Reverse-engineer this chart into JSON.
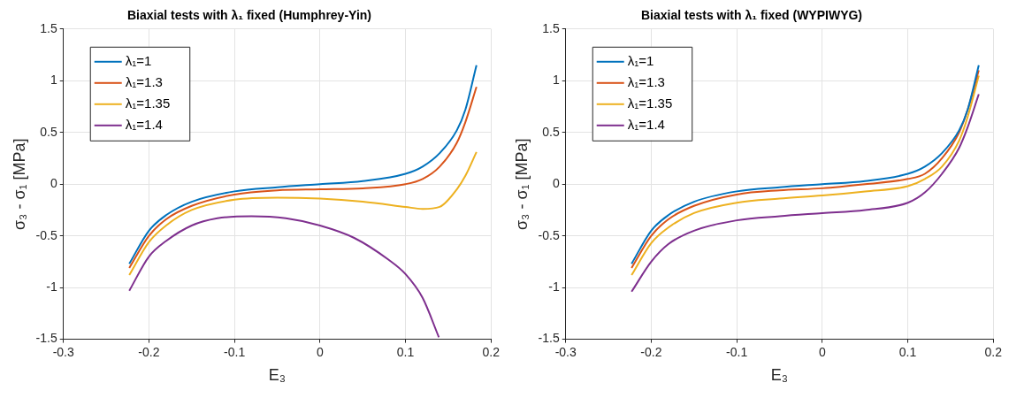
{
  "chart_data": [
    {
      "type": "line",
      "title": "Biaxial tests with λ₁ fixed (Humphrey-Yin)",
      "xlabel": "E₃",
      "ylabel": "σ₃ - σ₁ [MPa]",
      "xlim": [
        -0.3,
        0.2
      ],
      "ylim": [
        -1.5,
        1.5
      ],
      "xticks": [
        -0.3,
        -0.2,
        -0.1,
        0,
        0.1,
        0.2
      ],
      "yticks": [
        -1.5,
        -1,
        -0.5,
        0,
        0.5,
        1,
        1.5
      ],
      "grid": true,
      "legend": "top left",
      "marker": "none",
      "line_style": "solid",
      "series": [
        {
          "name": "λ₁=1",
          "color": "#0072bd",
          "x": [
            -0.223,
            -0.2,
            -0.18,
            -0.15,
            -0.1,
            -0.05,
            0,
            0.05,
            0.1,
            0.12,
            0.14,
            0.16,
            0.17,
            0.183
          ],
          "values": [
            -0.77,
            -0.45,
            -0.3,
            -0.17,
            -0.07,
            -0.03,
            0,
            0.03,
            0.1,
            0.17,
            0.3,
            0.52,
            0.72,
            1.15
          ]
        },
        {
          "name": "λ₁=1.3",
          "color": "#d95319",
          "x": [
            -0.223,
            -0.2,
            -0.18,
            -0.15,
            -0.1,
            -0.05,
            0,
            0.05,
            0.1,
            0.12,
            0.14,
            0.16,
            0.17,
            0.183
          ],
          "values": [
            -0.81,
            -0.5,
            -0.34,
            -0.21,
            -0.1,
            -0.06,
            -0.05,
            -0.04,
            0,
            0.05,
            0.17,
            0.4,
            0.6,
            0.94
          ]
        },
        {
          "name": "λ₁=1.35",
          "color": "#edb120",
          "x": [
            -0.223,
            -0.2,
            -0.18,
            -0.15,
            -0.1,
            -0.05,
            0,
            0.05,
            0.1,
            0.12,
            0.14,
            0.16,
            0.17,
            0.183
          ],
          "values": [
            -0.88,
            -0.56,
            -0.4,
            -0.25,
            -0.15,
            -0.13,
            -0.14,
            -0.17,
            -0.22,
            -0.24,
            -0.22,
            -0.05,
            0.08,
            0.31
          ]
        },
        {
          "name": "λ₁=1.4",
          "color": "#7e2f8e",
          "x": [
            -0.223,
            -0.2,
            -0.18,
            -0.15,
            -0.12,
            -0.08,
            -0.04,
            0,
            0.04,
            0.08,
            0.1,
            0.12,
            0.139
          ],
          "values": [
            -1.03,
            -0.7,
            -0.55,
            -0.4,
            -0.33,
            -0.31,
            -0.33,
            -0.4,
            -0.52,
            -0.73,
            -0.87,
            -1.1,
            -1.48
          ]
        }
      ]
    },
    {
      "type": "line",
      "title": "Biaxial tests with λ₁ fixed (WYPIWYG)",
      "xlabel": "E₃",
      "ylabel": "σ₃ - σ₁ [MPa]",
      "xlim": [
        -0.3,
        0.2
      ],
      "ylim": [
        -1.5,
        1.5
      ],
      "xticks": [
        -0.3,
        -0.2,
        -0.1,
        0,
        0.1,
        0.2
      ],
      "yticks": [
        -1.5,
        -1,
        -0.5,
        0,
        0.5,
        1,
        1.5
      ],
      "grid": true,
      "legend": "top left",
      "marker": "none",
      "line_style": "solid",
      "series": [
        {
          "name": "λ₁=1",
          "color": "#0072bd",
          "x": [
            -0.223,
            -0.2,
            -0.18,
            -0.15,
            -0.1,
            -0.05,
            0,
            0.05,
            0.1,
            0.12,
            0.14,
            0.16,
            0.17,
            0.183
          ],
          "values": [
            -0.77,
            -0.45,
            -0.3,
            -0.17,
            -0.07,
            -0.03,
            0,
            0.03,
            0.1,
            0.17,
            0.3,
            0.52,
            0.72,
            1.15
          ]
        },
        {
          "name": "λ₁=1.3",
          "color": "#d95319",
          "x": [
            -0.223,
            -0.2,
            -0.18,
            -0.15,
            -0.1,
            -0.05,
            0,
            0.05,
            0.1,
            0.12,
            0.14,
            0.16,
            0.17,
            0.183
          ],
          "values": [
            -0.81,
            -0.5,
            -0.34,
            -0.21,
            -0.1,
            -0.06,
            -0.04,
            0,
            0.05,
            0.1,
            0.25,
            0.5,
            0.72,
            1.1
          ]
        },
        {
          "name": "λ₁=1.35",
          "color": "#edb120",
          "x": [
            -0.223,
            -0.2,
            -0.18,
            -0.15,
            -0.1,
            -0.05,
            0,
            0.05,
            0.1,
            0.12,
            0.14,
            0.16,
            0.17,
            0.183
          ],
          "values": [
            -0.88,
            -0.57,
            -0.42,
            -0.28,
            -0.18,
            -0.14,
            -0.11,
            -0.07,
            -0.02,
            0.05,
            0.17,
            0.42,
            0.65,
            1.05
          ]
        },
        {
          "name": "λ₁=1.4",
          "color": "#7e2f8e",
          "x": [
            -0.223,
            -0.2,
            -0.18,
            -0.15,
            -0.1,
            -0.05,
            0,
            0.05,
            0.1,
            0.12,
            0.14,
            0.16,
            0.17,
            0.183
          ],
          "values": [
            -1.04,
            -0.75,
            -0.58,
            -0.45,
            -0.35,
            -0.31,
            -0.28,
            -0.25,
            -0.18,
            -0.08,
            0.1,
            0.35,
            0.55,
            0.87
          ]
        }
      ]
    }
  ]
}
